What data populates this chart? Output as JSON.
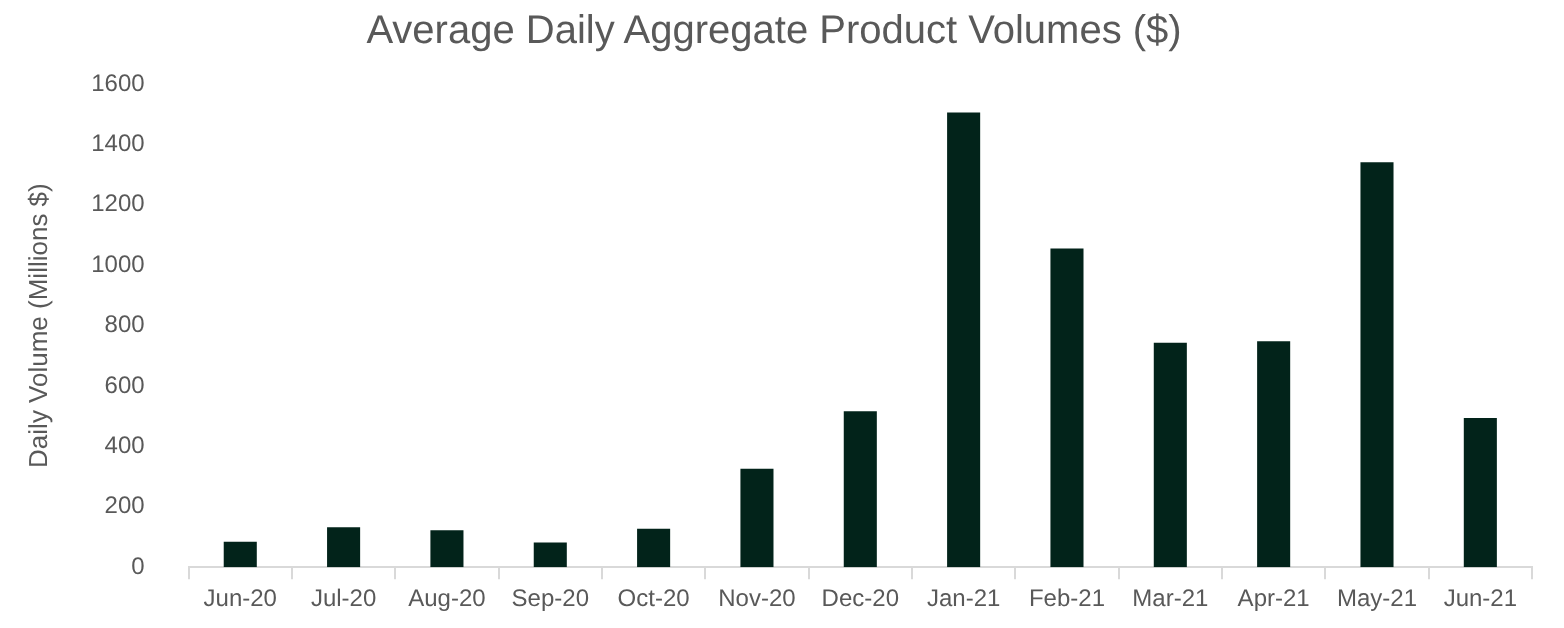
{
  "chart_data": {
    "type": "bar",
    "title": "Average Daily Aggregate Product Volumes ($)",
    "ylabel": "Daily Volume (Millions $)",
    "categories": [
      "Jun-20",
      "Jul-20",
      "Aug-20",
      "Sep-20",
      "Oct-20",
      "Nov-20",
      "Dec-20",
      "Jan-21",
      "Feb-21",
      "Mar-21",
      "Apr-21",
      "May-21",
      "Jun-21"
    ],
    "values": [
      84,
      132,
      122,
      82,
      127,
      326,
      516,
      1506,
      1055,
      743,
      748,
      1341,
      494
    ],
    "color": "#02231a",
    "ylim": [
      0,
      1600
    ],
    "yticks": [
      0,
      200,
      400,
      600,
      800,
      1000,
      1200,
      1400,
      1600
    ],
    "grid": false,
    "legend": false
  }
}
